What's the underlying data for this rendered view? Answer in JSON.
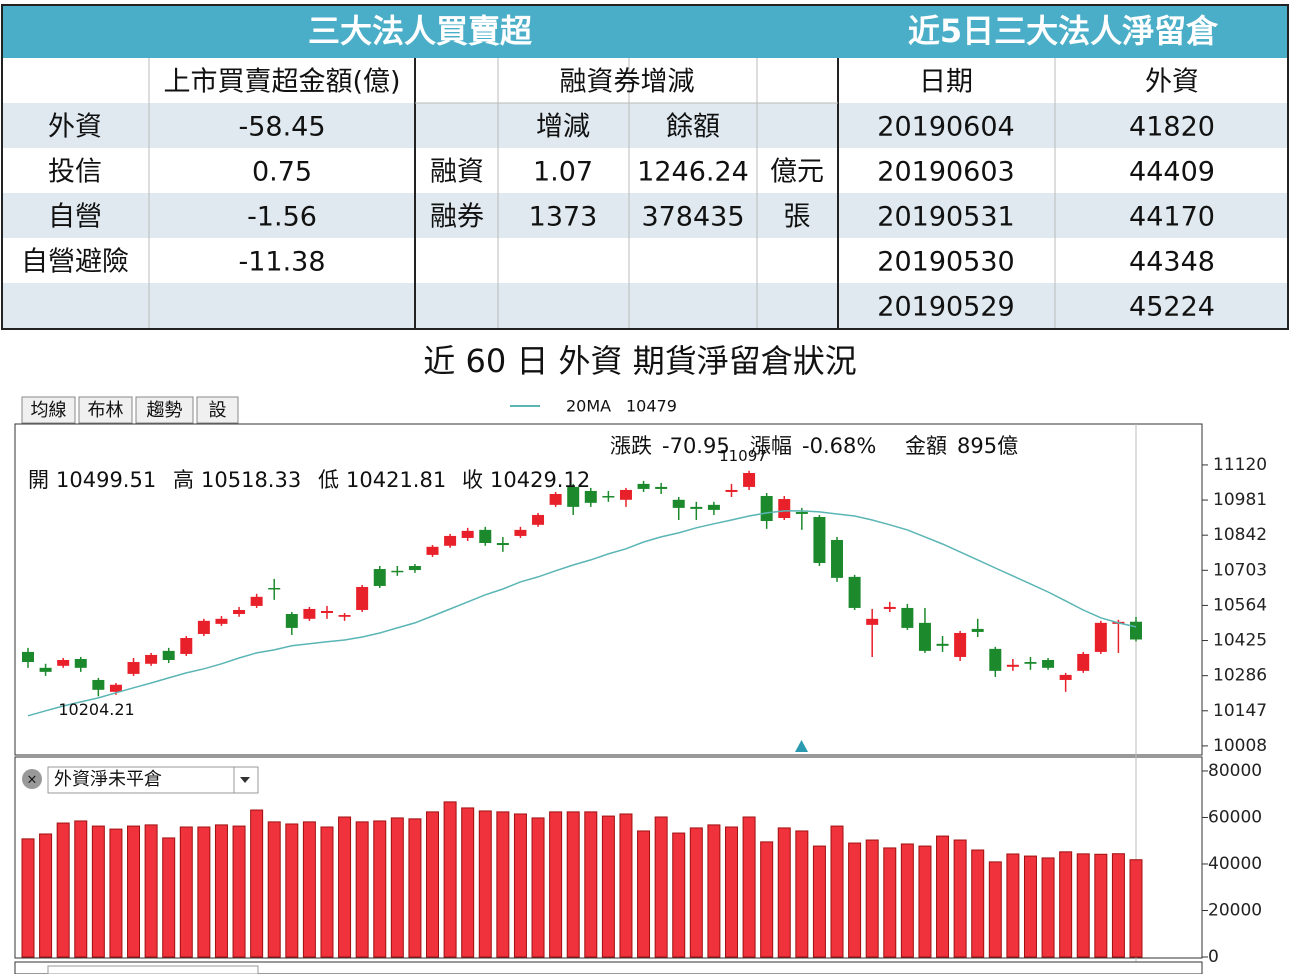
{
  "left_table": {
    "title": "三大法人買賣超",
    "header": [
      "上市買賣超金額(億)",
      "融資券增減"
    ],
    "rows": [
      {
        "label": "外資",
        "value": "-58.45"
      },
      {
        "label": "投信",
        "value": "0.75"
      },
      {
        "label": "自營",
        "value": "-1.56"
      },
      {
        "label": "自營避險",
        "value": "-11.38"
      }
    ],
    "sub_header": [
      "增減",
      "餘額"
    ],
    "margin_rows": [
      {
        "label": "融資",
        "change": "1.07",
        "balance": "1246.24",
        "unit": "億元"
      },
      {
        "label": "融券",
        "change": "1373",
        "balance": "378435",
        "unit": "張"
      }
    ]
  },
  "right_table": {
    "title": "近5日三大法人淨留倉",
    "header": [
      "日期",
      "外資"
    ],
    "rows": [
      [
        "20190604",
        "41820"
      ],
      [
        "20190603",
        "44409"
      ],
      [
        "20190531",
        "44170"
      ],
      [
        "20190530",
        "44348"
      ],
      [
        "20190529",
        "45224"
      ]
    ]
  },
  "chart_title": "近 60 日 外資 期貨淨留倉狀況",
  "toolbar": [
    "均線",
    "布林",
    "趨勢",
    "設"
  ],
  "info": [
    {
      "label": "漲跌",
      "value": "-70.95"
    },
    {
      "label": "漲幅",
      "value": "-0.68%"
    },
    {
      "label": "金額",
      "value": "895億"
    }
  ],
  "ohlc_labels": [
    "開",
    "高",
    "低",
    "收"
  ],
  "dropdown": "外資淨未平倉",
  "chart_data": [
    {
      "type": "candlestick",
      "up_color": "#e8202a",
      "down_color": "#1c8a2c",
      "open": [
        10380,
        10317,
        10325,
        10352,
        10269,
        10222,
        10293,
        10333,
        10384,
        10372,
        10451,
        10491,
        10530,
        10562,
        10633,
        10530,
        10511,
        10534,
        10519,
        10546,
        10708,
        10701,
        10720,
        10764,
        10800,
        10831,
        10863,
        10811,
        10839,
        10883,
        10962,
        11033,
        11017,
        10997,
        10982,
        11045,
        11033,
        10982,
        10954,
        10962,
        11013,
        11033,
        10997,
        10910,
        10934,
        10914,
        10823,
        10677,
        10487,
        10550,
        10554,
        10495,
        10412,
        10360,
        10471,
        10392,
        10321,
        10340,
        10348,
        10269,
        10305,
        10380,
        10491,
        10499.51
      ],
      "high": [
        10396,
        10333,
        10356,
        10360,
        10277,
        10257,
        10356,
        10376,
        10396,
        10443,
        10511,
        10522,
        10558,
        10610,
        10669,
        10538,
        10558,
        10562,
        10534,
        10645,
        10720,
        10720,
        10728,
        10803,
        10847,
        10871,
        10875,
        10835,
        10875,
        10930,
        11013,
        11045,
        11029,
        11017,
        11029,
        11057,
        11049,
        10993,
        10974,
        10974,
        11045,
        11097,
        11009,
        10997,
        10950,
        10922,
        10835,
        10685,
        10550,
        10578,
        10570,
        10554,
        10443,
        10463,
        10511,
        10400,
        10352,
        10360,
        10356,
        10297,
        10380,
        10503,
        10507,
        10518.33
      ],
      "low": [
        10317,
        10285,
        10317,
        10301,
        10204.21,
        10210,
        10285,
        10325,
        10336,
        10364,
        10443,
        10483,
        10519,
        10554,
        10586,
        10447,
        10503,
        10511,
        10503,
        10538,
        10633,
        10681,
        10693,
        10756,
        10792,
        10819,
        10800,
        10776,
        10831,
        10875,
        10954,
        10922,
        10954,
        10974,
        10954,
        11013,
        11005,
        10902,
        10902,
        10922,
        10993,
        11021,
        10867,
        10902,
        10863,
        10720,
        10657,
        10546,
        10360,
        10538,
        10467,
        10376,
        10380,
        10344,
        10439,
        10281,
        10305,
        10309,
        10309,
        10222,
        10297,
        10372,
        10376,
        10421.81
      ],
      "close": [
        10340,
        10301,
        10348,
        10317,
        10230,
        10250,
        10340,
        10368,
        10348,
        10435,
        10503,
        10511,
        10546,
        10598,
        10629,
        10475,
        10550,
        10542,
        10526,
        10637,
        10641,
        10697,
        10704,
        10796,
        10839,
        10859,
        10811,
        10803,
        10863,
        10922,
        11005,
        10954,
        10970,
        10993,
        11021,
        11025,
        11025,
        10950,
        10946,
        10942,
        11021,
        11088,
        10898,
        10985,
        10926,
        10732,
        10673,
        10554,
        10511,
        10558,
        10475,
        10384,
        10404,
        10455,
        10459,
        10305,
        10329,
        10333,
        10317,
        10289,
        10372,
        10495,
        10499,
        10429.12
      ],
      "series": [
        {
          "name": "20MA",
          "color": "#5bb5b5",
          "values": [
            10127,
            10147,
            10166,
            10182,
            10198,
            10218,
            10238,
            10257,
            10277,
            10297,
            10313,
            10333,
            10356,
            10376,
            10388,
            10404,
            10412,
            10420,
            10427,
            10439,
            10455,
            10475,
            10495,
            10522,
            10550,
            10578,
            10606,
            10629,
            10657,
            10677,
            10701,
            10724,
            10744,
            10768,
            10788,
            10815,
            10835,
            10851,
            10871,
            10887,
            10902,
            10918,
            10930,
            10938,
            10938,
            10934,
            10926,
            10918,
            10902,
            10883,
            10863,
            10835,
            10807,
            10776,
            10744,
            10712,
            10681,
            10649,
            10617,
            10582,
            10546,
            10515,
            10495,
            10479
          ]
        }
      ],
      "ylim": [
        9972,
        11282
      ],
      "yticks": [
        11120,
        10981,
        10842,
        10703,
        10564,
        10425,
        10286,
        10147,
        10008
      ],
      "grid": true
    },
    {
      "type": "bar",
      "color": "#f0323c",
      "values": [
        50800,
        52900,
        57600,
        58500,
        56300,
        55000,
        56300,
        56800,
        51200,
        55900,
        55900,
        56800,
        56300,
        63200,
        58100,
        57200,
        58100,
        55900,
        60200,
        58100,
        58500,
        59800,
        59400,
        62400,
        66700,
        64100,
        62800,
        62400,
        61500,
        59800,
        62400,
        62400,
        62400,
        60600,
        61500,
        54200,
        60200,
        53300,
        55500,
        56800,
        55900,
        60200,
        49500,
        55500,
        54200,
        47700,
        56300,
        49000,
        50300,
        46900,
        48600,
        47700,
        52000,
        50300,
        46000,
        40900,
        44300,
        43400,
        42600,
        45224,
        44348,
        44170,
        44409,
        41820
      ],
      "ylim": [
        0,
        86000
      ],
      "yticks": [
        80000,
        60000,
        40000,
        20000,
        0
      ],
      "grid": true
    }
  ]
}
